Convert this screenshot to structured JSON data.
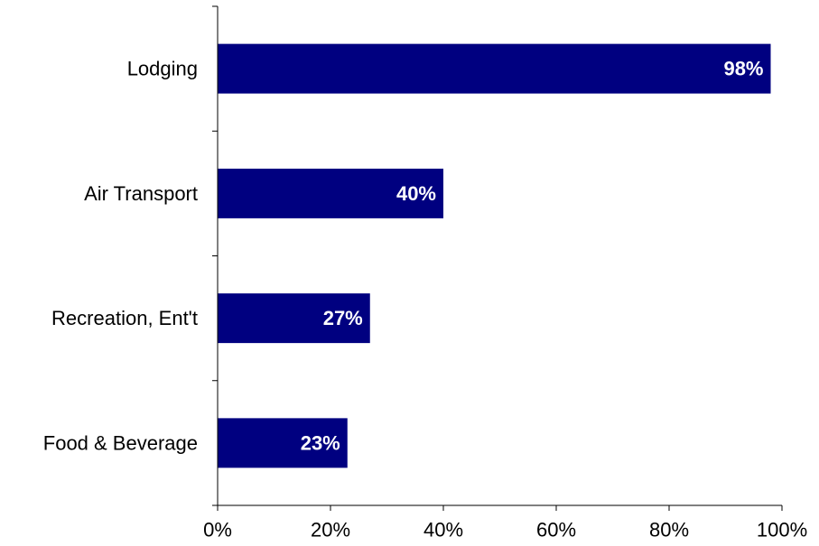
{
  "chart_data": {
    "type": "bar",
    "orientation": "horizontal",
    "categories": [
      "Lodging",
      "Air Transport",
      "Recreation, Ent't",
      "Food & Beverage"
    ],
    "values": [
      98,
      40,
      27,
      23
    ],
    "data_labels": [
      "98%",
      "40%",
      "27%",
      "23%"
    ],
    "xlim": [
      0,
      100
    ],
    "x_ticks": [
      0,
      20,
      40,
      60,
      80,
      100
    ],
    "x_tick_labels": [
      "0%",
      "20%",
      "40%",
      "60%",
      "80%",
      "100%"
    ],
    "grid": false,
    "legend": "none",
    "colors": {
      "bar": "#000080",
      "data_label": "#ffffff",
      "axis": "#000000"
    }
  }
}
